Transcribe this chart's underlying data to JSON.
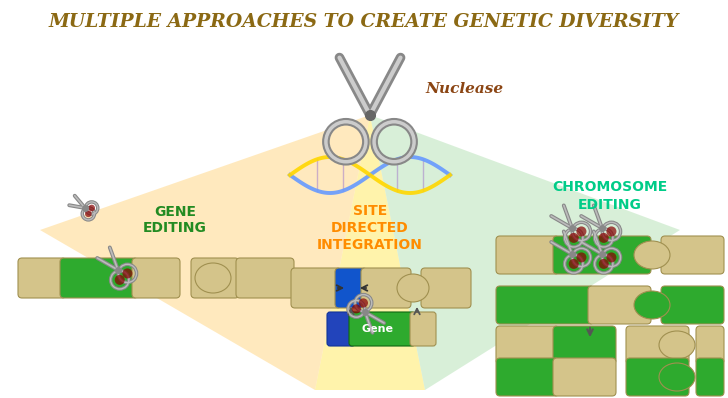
{
  "title": "MULTIPLE APPROACHES TO CREATE GENETIC DIVERSITY",
  "title_color": "#8B6914",
  "title_fontsize": 13.5,
  "background_color": "#FFFFFF",
  "gene_editing_label": "GENE\nEDITING",
  "gene_editing_color": "#228B22",
  "site_directed_label": "SITE\nDIRECTED\nINTEGRATION",
  "site_directed_color": "#FF8C00",
  "chromosome_label": "CHROMOSOME\nEDITING",
  "chromosome_color": "#00CC88",
  "nuclease_label": "Nuclease",
  "nuclease_color": "#8B4513",
  "gene_label": "Gene",
  "segment_green": "#2EAA2E",
  "segment_tan": "#D4C48A",
  "segment_tan_dark": "#C8B870",
  "blue_insert": "#1155CC",
  "blue_insert2": "#2244BB",
  "beam_yellow": "#FFEE88",
  "beam_orange": "#FFD880",
  "beam_green_light": "#BBDDAA",
  "scissors_gray": "#888888",
  "scissors_light": "#BBBBBB",
  "scissors_red": "#880000"
}
